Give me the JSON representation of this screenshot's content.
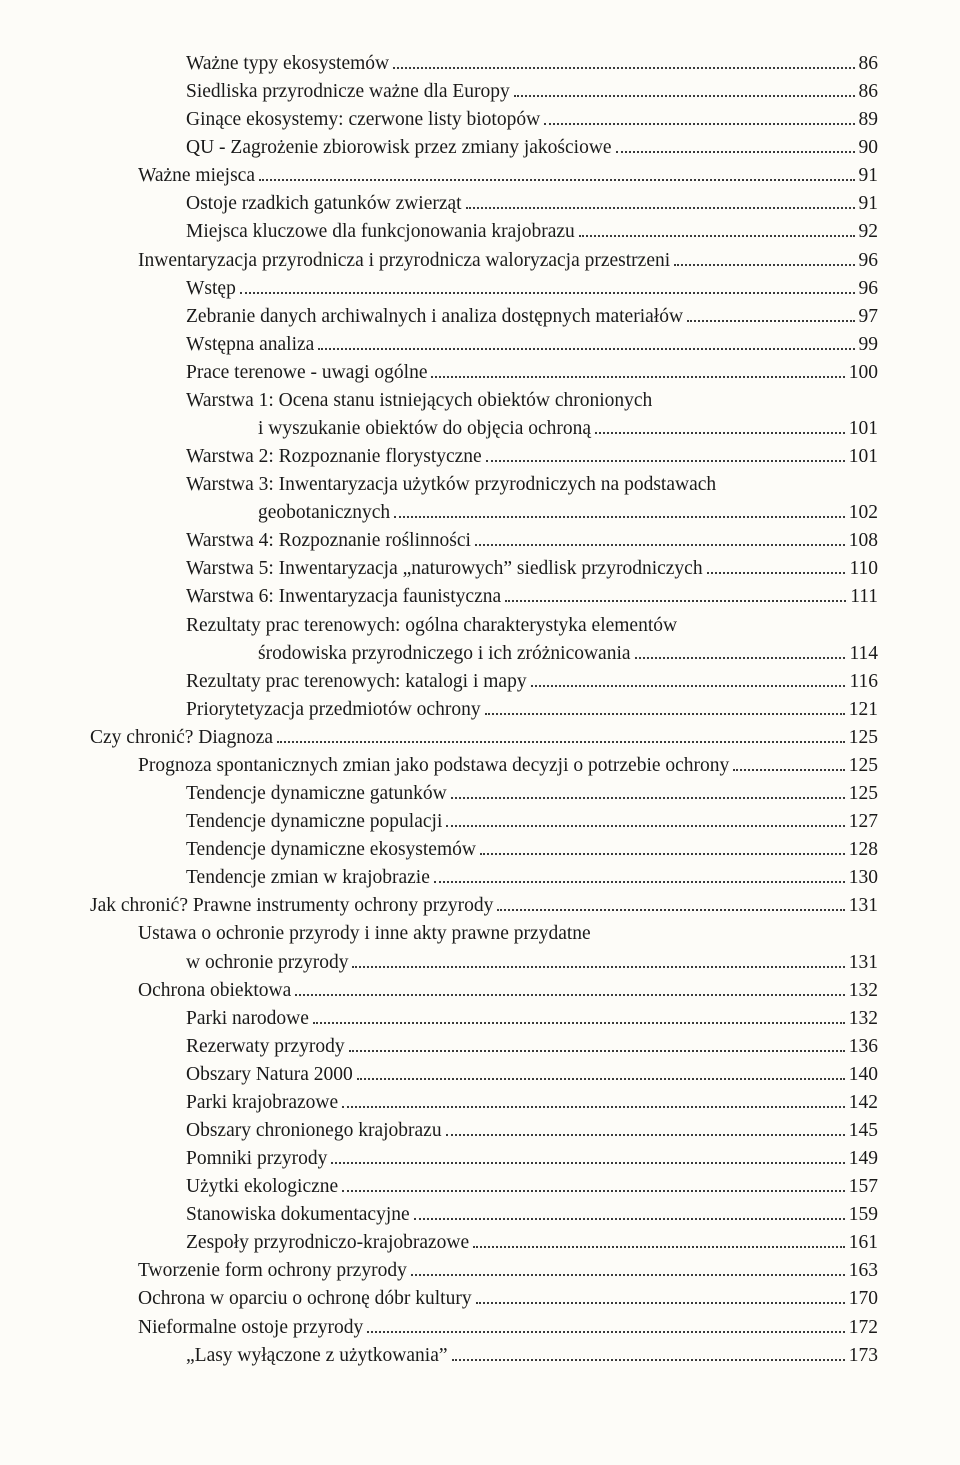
{
  "toc": [
    {
      "level": 2,
      "label": "Ważne typy ekosystemów",
      "page": "86"
    },
    {
      "level": 2,
      "label": "Siedliska przyrodnicze ważne dla Europy",
      "page": "86"
    },
    {
      "level": 2,
      "label": "Ginące ekosystemy: czerwone listy biotopów",
      "page": "89"
    },
    {
      "level": 2,
      "label": "QU - Zagrożenie zbiorowisk przez zmiany jakościowe",
      "page": "90"
    },
    {
      "level": 1,
      "label": "Ważne miejsca",
      "page": "91"
    },
    {
      "level": 2,
      "label": "Ostoje rzadkich gatunków zwierząt",
      "page": "91"
    },
    {
      "level": 2,
      "label": "Miejsca kluczowe dla funkcjonowania krajobrazu",
      "page": "92"
    },
    {
      "level": 1,
      "label": "Inwentaryzacja przyrodnicza i przyrodnicza waloryzacja przestrzeni",
      "page": "96"
    },
    {
      "level": 2,
      "label": "Wstęp",
      "page": "96"
    },
    {
      "level": 2,
      "label": "Zebranie danych archiwalnych i analiza dostępnych materiałów",
      "page": "97"
    },
    {
      "level": 2,
      "label": "Wstępna analiza",
      "page": "99"
    },
    {
      "level": 2,
      "label": "Prace terenowe - uwagi ogólne",
      "page": "100"
    },
    {
      "level": 2,
      "label": "Warstwa 1: Ocena stanu istniejących obiektów chronionych",
      "cont": "i wyszukanie obiektów do objęcia ochroną",
      "page": "101"
    },
    {
      "level": 2,
      "label": "Warstwa 2: Rozpoznanie florystyczne",
      "page": "101"
    },
    {
      "level": 2,
      "label": "Warstwa 3: Inwentaryzacja użytków przyrodniczych na podstawach",
      "cont": "geobotanicznych",
      "page": "102"
    },
    {
      "level": 2,
      "label": "Warstwa 4: Rozpoznanie roślinności",
      "page": "108"
    },
    {
      "level": 2,
      "label": "Warstwa 5: Inwentaryzacja „naturowych” siedlisk przyrodniczych",
      "page": "110"
    },
    {
      "level": 2,
      "label": "Warstwa 6: Inwentaryzacja faunistyczna",
      "page": "111"
    },
    {
      "level": 2,
      "label": "Rezultaty prac terenowych: ogólna charakterystyka elementów",
      "cont": "środowiska przyrodniczego i ich zróżnicowania",
      "page": "114"
    },
    {
      "level": 2,
      "label": "Rezultaty prac terenowych: katalogi i mapy",
      "page": "116"
    },
    {
      "level": 2,
      "label": "Priorytetyzacja przedmiotów ochrony",
      "page": "121"
    },
    {
      "level": 0,
      "label": "Czy chronić? Diagnoza",
      "page": "125"
    },
    {
      "level": 1,
      "label": "Prognoza spontanicznych zmian jako podstawa decyzji o potrzebie ochrony",
      "page": "125"
    },
    {
      "level": 2,
      "label": "Tendencje dynamiczne gatunków",
      "page": "125"
    },
    {
      "level": 2,
      "label": "Tendencje dynamiczne populacji",
      "page": "127"
    },
    {
      "level": 2,
      "label": "Tendencje dynamiczne ekosystemów",
      "page": "128"
    },
    {
      "level": 2,
      "label": "Tendencje zmian w krajobrazie",
      "page": "130"
    },
    {
      "level": 0,
      "label": "Jak chronić? Prawne instrumenty ochrony przyrody",
      "page": "131"
    },
    {
      "level": 1,
      "label": "Ustawa o ochronie przyrody i inne akty prawne przydatne",
      "cont": "w ochronie przyrody",
      "page": "131"
    },
    {
      "level": 1,
      "label": "Ochrona obiektowa",
      "page": "132"
    },
    {
      "level": 2,
      "label": "Parki narodowe",
      "page": "132"
    },
    {
      "level": 2,
      "label": "Rezerwaty przyrody",
      "page": "136"
    },
    {
      "level": 2,
      "label": "Obszary Natura 2000",
      "page": "140"
    },
    {
      "level": 2,
      "label": "Parki krajobrazowe",
      "page": "142"
    },
    {
      "level": 2,
      "label": "Obszary chronionego krajobrazu",
      "page": "145"
    },
    {
      "level": 2,
      "label": "Pomniki przyrody",
      "page": "149"
    },
    {
      "level": 2,
      "label": "Użytki ekologiczne",
      "page": "157"
    },
    {
      "level": 2,
      "label": "Stanowiska dokumentacyjne",
      "page": "159"
    },
    {
      "level": 2,
      "label": "Zespoły przyrodniczo-krajobrazowe",
      "page": "161"
    },
    {
      "level": 1,
      "label": "Tworzenie form ochrony przyrody",
      "page": "163"
    },
    {
      "level": 1,
      "label": "Ochrona w oparciu o ochronę dóbr kultury",
      "page": "170"
    },
    {
      "level": 1,
      "label": "Nieformalne ostoje przyrody",
      "page": "172"
    },
    {
      "level": 2,
      "label": "„Lasy wyłączone z użytkowania”",
      "page": "173"
    }
  ]
}
